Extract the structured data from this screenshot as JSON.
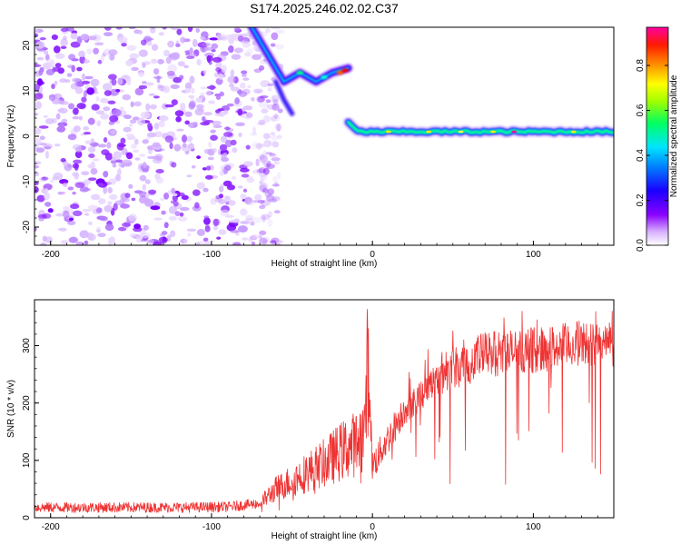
{
  "figure_title": "S174.2025.246.02.02.C37",
  "chart_data": [
    {
      "type": "heatmap",
      "xlabel": "Height of straight line (km)",
      "ylabel": "Frequency (Hz)",
      "xlim": [
        -210,
        150
      ],
      "ylim": [
        -24,
        24
      ],
      "xticks": [
        -200,
        -100,
        0,
        100
      ],
      "yticks": [
        -20,
        -10,
        0,
        10,
        20
      ],
      "colorbar": {
        "label": "Normalized spectral amplitude",
        "ticks": [
          0.0,
          0.2,
          0.4,
          0.6,
          0.8
        ],
        "range": [
          0,
          0.97
        ],
        "colormap": [
          "#ffffff",
          "#a000ff",
          "#0000ff",
          "#00ffff",
          "#00ff00",
          "#ffff00",
          "#ff8000",
          "#ff0000",
          "#ff00a0"
        ]
      },
      "features": {
        "noise_region_x": [
          -210,
          -65
        ],
        "descending_trace": [
          [
            -75,
            24
          ],
          [
            -65,
            18
          ],
          [
            -55,
            12
          ],
          [
            -45,
            14
          ],
          [
            -35,
            12
          ],
          [
            -25,
            14
          ],
          [
            -15,
            15
          ]
        ],
        "dip_trace": [
          [
            -60,
            12
          ],
          [
            -55,
            8
          ],
          [
            -50,
            5
          ]
        ],
        "carrier_start_x": -15,
        "carrier_frequency_hz": 1.0
      }
    },
    {
      "type": "line",
      "xlabel": "Height of straight line (km)",
      "ylabel": "SNR (10 * v/v)",
      "xlim": [
        -210,
        150
      ],
      "ylim": [
        0,
        380
      ],
      "xticks": [
        -200,
        -100,
        0,
        100
      ],
      "yticks": [
        0,
        100,
        200,
        300
      ],
      "series": [
        {
          "name": "SNR",
          "color": "#ee3333",
          "x": [
            -210,
            -180,
            -150,
            -120,
            -90,
            -70,
            -60,
            -50,
            -40,
            -30,
            -20,
            -10,
            -5,
            -3,
            -1,
            0,
            10,
            20,
            30,
            40,
            50,
            70,
            90,
            110,
            130,
            150
          ],
          "values": [
            18,
            18,
            18,
            18,
            19,
            25,
            50,
            65,
            80,
            95,
            115,
            130,
            150,
            270,
            160,
            90,
            140,
            190,
            215,
            245,
            265,
            285,
            290,
            295,
            305,
            300
          ]
        }
      ]
    }
  ]
}
